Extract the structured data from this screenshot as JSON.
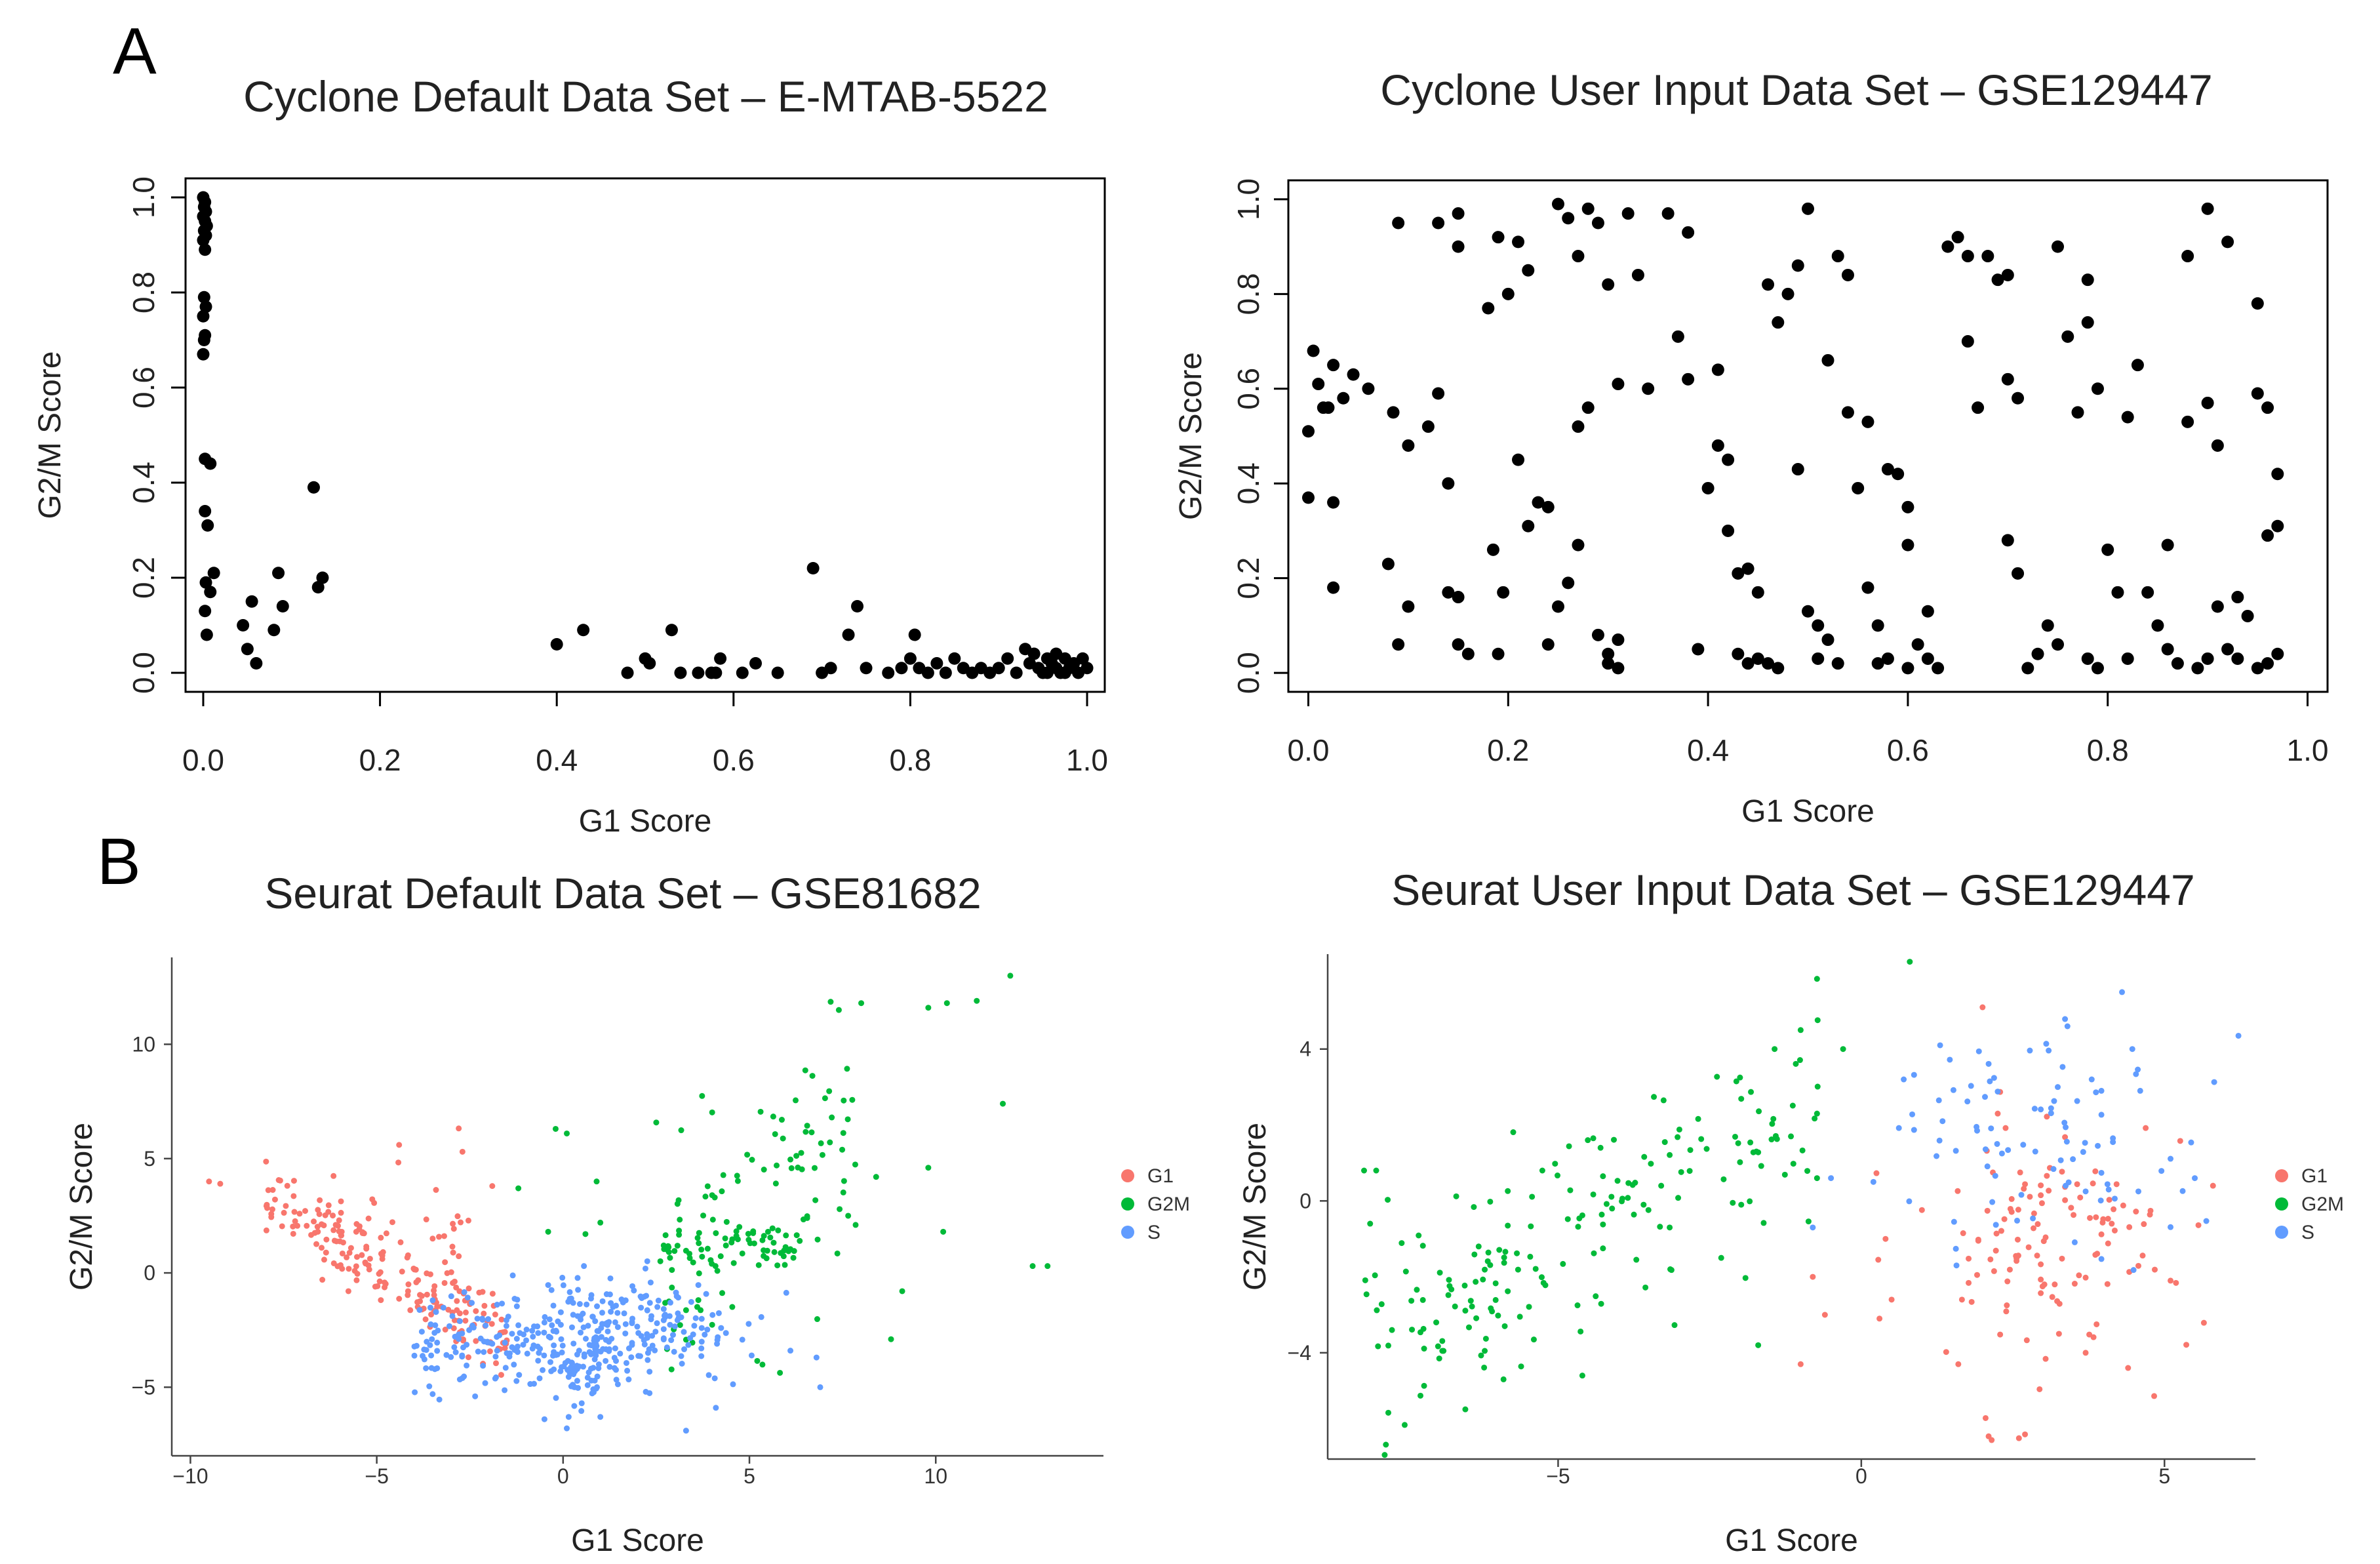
{
  "panels": {
    "a": "A",
    "b": "B"
  },
  "chart_data": [
    {
      "id": "cyclone_default",
      "type": "scatter",
      "title": "Cyclone Default Data Set – E-MTAB-5522",
      "xlabel": "G1 Score",
      "ylabel": "G2/M Score",
      "xlim": [
        -0.02,
        1.02
      ],
      "ylim": [
        -0.04,
        1.04
      ],
      "xticks": [
        "0.0",
        "0.2",
        "0.4",
        "0.6",
        "0.8",
        "1.0"
      ],
      "yticks": [
        "0.0",
        "0.2",
        "0.4",
        "0.6",
        "0.8",
        "1.0"
      ],
      "color": "#000000",
      "points": [
        [
          0.0,
          1.0
        ],
        [
          0.002,
          0.99
        ],
        [
          0.001,
          0.98
        ],
        [
          0.003,
          0.97
        ],
        [
          0.0,
          0.96
        ],
        [
          0.002,
          0.95
        ],
        [
          0.004,
          0.94
        ],
        [
          0.001,
          0.93
        ],
        [
          0.003,
          0.92
        ],
        [
          0.0,
          0.91
        ],
        [
          0.002,
          0.89
        ],
        [
          0.001,
          0.79
        ],
        [
          0.003,
          0.77
        ],
        [
          0.0,
          0.75
        ],
        [
          0.002,
          0.71
        ],
        [
          0.001,
          0.7
        ],
        [
          0.0,
          0.67
        ],
        [
          0.002,
          0.45
        ],
        [
          0.008,
          0.44
        ],
        [
          0.002,
          0.34
        ],
        [
          0.005,
          0.31
        ],
        [
          0.012,
          0.21
        ],
        [
          0.003,
          0.19
        ],
        [
          0.008,
          0.17
        ],
        [
          0.002,
          0.13
        ],
        [
          0.004,
          0.08
        ],
        [
          0.045,
          0.1
        ],
        [
          0.055,
          0.15
        ],
        [
          0.05,
          0.05
        ],
        [
          0.06,
          0.02
        ],
        [
          0.085,
          0.21
        ],
        [
          0.09,
          0.14
        ],
        [
          0.08,
          0.09
        ],
        [
          0.125,
          0.39
        ],
        [
          0.135,
          0.2
        ],
        [
          0.13,
          0.18
        ],
        [
          0.4,
          0.06
        ],
        [
          0.43,
          0.09
        ],
        [
          0.48,
          0.0
        ],
        [
          0.5,
          0.03
        ],
        [
          0.505,
          0.02
        ],
        [
          0.53,
          0.09
        ],
        [
          0.54,
          0.0
        ],
        [
          0.56,
          0.0
        ],
        [
          0.575,
          0.0
        ],
        [
          0.58,
          0.0
        ],
        [
          0.585,
          0.03
        ],
        [
          0.61,
          0.0
        ],
        [
          0.625,
          0.02
        ],
        [
          0.65,
          0.0
        ],
        [
          0.69,
          0.22
        ],
        [
          0.7,
          0.0
        ],
        [
          0.71,
          0.01
        ],
        [
          0.73,
          0.08
        ],
        [
          0.74,
          0.14
        ],
        [
          0.75,
          0.01
        ],
        [
          0.775,
          0.0
        ],
        [
          0.79,
          0.01
        ],
        [
          0.8,
          0.03
        ],
        [
          0.805,
          0.08
        ],
        [
          0.81,
          0.01
        ],
        [
          0.82,
          0.0
        ],
        [
          0.83,
          0.02
        ],
        [
          0.84,
          0.0
        ],
        [
          0.85,
          0.03
        ],
        [
          0.86,
          0.01
        ],
        [
          0.87,
          0.0
        ],
        [
          0.88,
          0.01
        ],
        [
          0.89,
          0.0
        ],
        [
          0.9,
          0.01
        ],
        [
          0.91,
          0.03
        ],
        [
          0.92,
          0.0
        ],
        [
          0.93,
          0.05
        ],
        [
          0.935,
          0.02
        ],
        [
          0.94,
          0.04
        ],
        [
          0.945,
          0.01
        ],
        [
          0.95,
          0.0
        ],
        [
          0.955,
          0.03
        ],
        [
          0.96,
          0.02
        ],
        [
          0.965,
          0.01
        ],
        [
          0.97,
          0.0
        ],
        [
          0.975,
          0.03
        ],
        [
          0.98,
          0.01
        ],
        [
          0.985,
          0.02
        ],
        [
          0.99,
          0.0
        ],
        [
          0.995,
          0.03
        ],
        [
          1.0,
          0.01
        ],
        [
          0.965,
          0.04
        ],
        [
          0.955,
          0.0
        ],
        [
          0.975,
          0.0
        ]
      ]
    },
    {
      "id": "cyclone_user",
      "type": "scatter",
      "title": "Cyclone User Input Data Set – GSE129447",
      "xlabel": "G1 Score",
      "ylabel": "G2/M Score",
      "xlim": [
        -0.02,
        1.02
      ],
      "ylim": [
        -0.04,
        1.04
      ],
      "xticks": [
        "0.0",
        "0.2",
        "0.4",
        "0.6",
        "0.8",
        "1.0"
      ],
      "yticks": [
        "0.0",
        "0.2",
        "0.4",
        "0.6",
        "0.8",
        "1.0"
      ],
      "color": "#000000",
      "points": [
        [
          0.005,
          0.68
        ],
        [
          0.01,
          0.61
        ],
        [
          0.025,
          0.65
        ],
        [
          0.02,
          0.56
        ],
        [
          0.035,
          0.58
        ],
        [
          0.045,
          0.63
        ],
        [
          0.06,
          0.6
        ],
        [
          0.0,
          0.51
        ],
        [
          0.015,
          0.56
        ],
        [
          0.0,
          0.37
        ],
        [
          0.025,
          0.36
        ],
        [
          0.025,
          0.18
        ],
        [
          0.09,
          0.95
        ],
        [
          0.13,
          0.95
        ],
        [
          0.15,
          0.97
        ],
        [
          0.15,
          0.9
        ],
        [
          0.1,
          0.48
        ],
        [
          0.085,
          0.55
        ],
        [
          0.09,
          0.06
        ],
        [
          0.08,
          0.23
        ],
        [
          0.1,
          0.14
        ],
        [
          0.12,
          0.52
        ],
        [
          0.13,
          0.59
        ],
        [
          0.14,
          0.4
        ],
        [
          0.14,
          0.17
        ],
        [
          0.15,
          0.16
        ],
        [
          0.15,
          0.06
        ],
        [
          0.16,
          0.04
        ],
        [
          0.18,
          0.77
        ],
        [
          0.19,
          0.92
        ],
        [
          0.2,
          0.8
        ],
        [
          0.21,
          0.91
        ],
        [
          0.22,
          0.85
        ],
        [
          0.185,
          0.26
        ],
        [
          0.195,
          0.17
        ],
        [
          0.19,
          0.04
        ],
        [
          0.21,
          0.45
        ],
        [
          0.22,
          0.31
        ],
        [
          0.23,
          0.36
        ],
        [
          0.24,
          0.35
        ],
        [
          0.24,
          0.06
        ],
        [
          0.25,
          0.14
        ],
        [
          0.25,
          0.99
        ],
        [
          0.26,
          0.96
        ],
        [
          0.27,
          0.88
        ],
        [
          0.28,
          0.98
        ],
        [
          0.29,
          0.95
        ],
        [
          0.27,
          0.52
        ],
        [
          0.28,
          0.56
        ],
        [
          0.26,
          0.19
        ],
        [
          0.27,
          0.27
        ],
        [
          0.29,
          0.08
        ],
        [
          0.3,
          0.04
        ],
        [
          0.3,
          0.02
        ],
        [
          0.31,
          0.01
        ],
        [
          0.31,
          0.07
        ],
        [
          0.3,
          0.82
        ],
        [
          0.32,
          0.97
        ],
        [
          0.33,
          0.84
        ],
        [
          0.31,
          0.61
        ],
        [
          0.34,
          0.6
        ],
        [
          0.36,
          0.97
        ],
        [
          0.37,
          0.71
        ],
        [
          0.38,
          0.93
        ],
        [
          0.39,
          0.05
        ],
        [
          0.4,
          0.39
        ],
        [
          0.41,
          0.64
        ],
        [
          0.41,
          0.48
        ],
        [
          0.42,
          0.3
        ],
        [
          0.42,
          0.45
        ],
        [
          0.43,
          0.21
        ],
        [
          0.44,
          0.22
        ],
        [
          0.45,
          0.17
        ],
        [
          0.43,
          0.04
        ],
        [
          0.44,
          0.02
        ],
        [
          0.45,
          0.03
        ],
        [
          0.46,
          0.02
        ],
        [
          0.47,
          0.01
        ],
        [
          0.47,
          0.74
        ],
        [
          0.48,
          0.8
        ],
        [
          0.46,
          0.82
        ],
        [
          0.49,
          0.86
        ],
        [
          0.5,
          0.98
        ],
        [
          0.49,
          0.43
        ],
        [
          0.5,
          0.13
        ],
        [
          0.51,
          0.1
        ],
        [
          0.51,
          0.03
        ],
        [
          0.52,
          0.07
        ],
        [
          0.53,
          0.02
        ],
        [
          0.52,
          0.66
        ],
        [
          0.53,
          0.88
        ],
        [
          0.54,
          0.55
        ],
        [
          0.55,
          0.39
        ],
        [
          0.54,
          0.84
        ],
        [
          0.56,
          0.18
        ],
        [
          0.57,
          0.1
        ],
        [
          0.57,
          0.02
        ],
        [
          0.58,
          0.03
        ],
        [
          0.58,
          0.43
        ],
        [
          0.59,
          0.42
        ],
        [
          0.6,
          0.27
        ],
        [
          0.6,
          0.01
        ],
        [
          0.61,
          0.06
        ],
        [
          0.62,
          0.13
        ],
        [
          0.62,
          0.03
        ],
        [
          0.63,
          0.01
        ],
        [
          0.64,
          0.9
        ],
        [
          0.65,
          0.92
        ],
        [
          0.66,
          0.88
        ],
        [
          0.66,
          0.7
        ],
        [
          0.67,
          0.56
        ],
        [
          0.68,
          0.88
        ],
        [
          0.69,
          0.83
        ],
        [
          0.7,
          0.84
        ],
        [
          0.7,
          0.62
        ],
        [
          0.71,
          0.58
        ],
        [
          0.7,
          0.28
        ],
        [
          0.71,
          0.21
        ],
        [
          0.72,
          0.01
        ],
        [
          0.73,
          0.04
        ],
        [
          0.74,
          0.1
        ],
        [
          0.75,
          0.06
        ],
        [
          0.75,
          0.9
        ],
        [
          0.76,
          0.71
        ],
        [
          0.77,
          0.55
        ],
        [
          0.78,
          0.83
        ],
        [
          0.78,
          0.74
        ],
        [
          0.79,
          0.6
        ],
        [
          0.78,
          0.03
        ],
        [
          0.79,
          0.01
        ],
        [
          0.8,
          0.26
        ],
        [
          0.81,
          0.17
        ],
        [
          0.82,
          0.03
        ],
        [
          0.82,
          0.54
        ],
        [
          0.83,
          0.65
        ],
        [
          0.84,
          0.17
        ],
        [
          0.85,
          0.1
        ],
        [
          0.86,
          0.05
        ],
        [
          0.86,
          0.27
        ],
        [
          0.87,
          0.02
        ],
        [
          0.88,
          0.53
        ],
        [
          0.89,
          0.01
        ],
        [
          0.9,
          0.03
        ],
        [
          0.9,
          0.98
        ],
        [
          0.91,
          0.48
        ],
        [
          0.91,
          0.14
        ],
        [
          0.92,
          0.05
        ],
        [
          0.93,
          0.16
        ],
        [
          0.93,
          0.03
        ],
        [
          0.94,
          0.12
        ],
        [
          0.95,
          0.78
        ],
        [
          0.95,
          0.59
        ],
        [
          0.96,
          0.56
        ],
        [
          0.96,
          0.29
        ],
        [
          0.97,
          0.42
        ],
        [
          0.97,
          0.31
        ],
        [
          0.96,
          0.02
        ],
        [
          0.97,
          0.04
        ],
        [
          0.95,
          0.01
        ],
        [
          0.9,
          0.57
        ],
        [
          0.92,
          0.91
        ],
        [
          0.88,
          0.88
        ],
        [
          0.6,
          0.35
        ],
        [
          0.56,
          0.53
        ],
        [
          0.38,
          0.62
        ]
      ]
    },
    {
      "id": "seurat_default",
      "type": "scatter",
      "title": "Seurat Default Data Set – GSE81682",
      "xlabel": "G1 Score",
      "ylabel": "G2/M Score",
      "xlim": [
        -10.5,
        14.5
      ],
      "ylim": [
        -8.0,
        13.8
      ],
      "xticks": [
        -10,
        -5,
        0,
        5,
        10
      ],
      "yticks": [
        -5,
        0,
        5,
        10
      ],
      "legend": {
        "title": "",
        "position": "right",
        "items": [
          "G1",
          "G2M",
          "S"
        ]
      },
      "colors": {
        "G1": "#F8766D",
        "G2M": "#00BA38",
        "S": "#619CFF"
      },
      "series": [
        {
          "name": "G1",
          "points": []
        },
        {
          "name": "G2M",
          "points": []
        },
        {
          "name": "S",
          "points": []
        }
      ]
    },
    {
      "id": "seurat_user",
      "type": "scatter",
      "title": "Seurat User Input Data Set – GSE129447",
      "xlabel": "G1 Score",
      "ylabel": "G2/M Score",
      "xlim": [
        -8.8,
        6.5
      ],
      "ylim": [
        -6.8,
        6.5
      ],
      "xticks": [
        -5,
        0,
        5
      ],
      "yticks": [
        -4,
        0,
        4
      ],
      "legend": {
        "title": "",
        "position": "right",
        "items": [
          "G1",
          "G2M",
          "S"
        ]
      },
      "colors": {
        "G1": "#F8766D",
        "G2M": "#00BA38",
        "S": "#619CFF"
      },
      "series": [
        {
          "name": "G1",
          "points": []
        },
        {
          "name": "G2M",
          "points": []
        },
        {
          "name": "S",
          "points": []
        }
      ]
    }
  ]
}
